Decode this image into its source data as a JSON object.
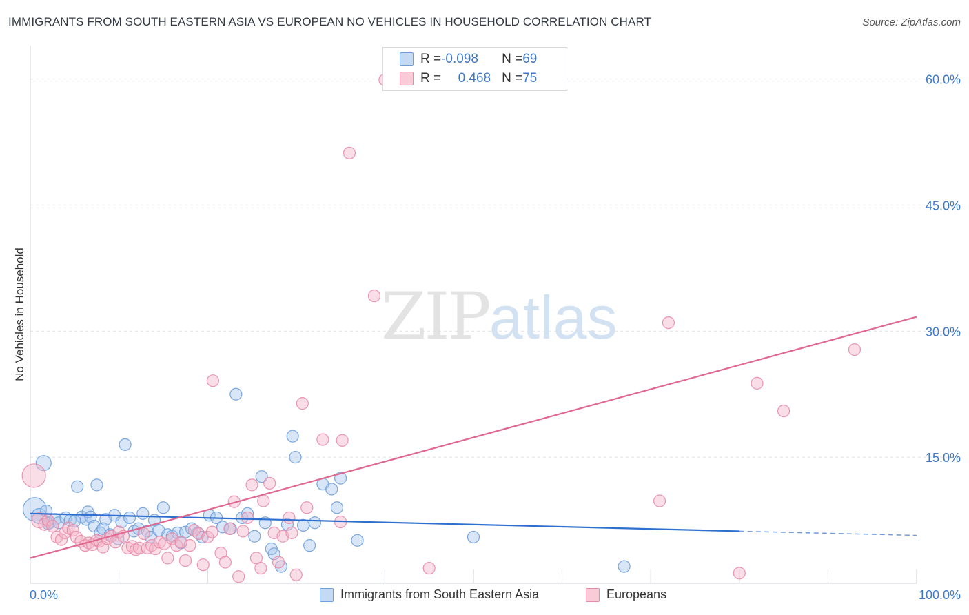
{
  "title": "IMMIGRANTS FROM SOUTH EASTERN ASIA VS EUROPEAN NO VEHICLES IN HOUSEHOLD CORRELATION CHART",
  "source": "Source: ZipAtlas.com",
  "watermark": {
    "zip": "ZIP",
    "atlas": "atlas"
  },
  "legend": {
    "rows": [
      {
        "r_label": "R = ",
        "r_value": "-0.098",
        "n_label": "N = ",
        "n_value": "69"
      },
      {
        "r_label": "R = ",
        "r_value": "0.468",
        "n_label": "N = ",
        "n_value": "75"
      }
    ]
  },
  "colors": {
    "blue_fill": "#a9c8ee",
    "blue_stroke": "#6d9fdc",
    "blue_line": "#2e6fcf",
    "pink_fill": "#f4b6c9",
    "pink_stroke": "#e98aa6",
    "pink_line": "#e0678f",
    "tick_label": "#3d79c8",
    "grid": "#dde0e5"
  },
  "chart_data": {
    "type": "scatter",
    "xlabel": "",
    "ylabel": "No Vehicles in Household",
    "xlim": [
      0,
      100
    ],
    "ylim": [
      0,
      63
    ],
    "x_tick_labels": [
      "0.0%",
      "100.0%"
    ],
    "y_ticks": [
      15,
      30,
      45,
      60
    ],
    "y_tick_labels": [
      "15.0%",
      "30.0%",
      "45.0%",
      "60.0%"
    ],
    "grid": true,
    "legend_position": "top-center",
    "series": [
      {
        "name": "Immigrants from South Eastern Asia",
        "color": "blue",
        "r": -0.098,
        "n": 69,
        "trend": {
          "x0": 0,
          "y0": 8.3,
          "x1": 80,
          "y1": 6.2,
          "dashed_to_x": 100,
          "dashed_to_y": 5.7
        },
        "points": [
          [
            0.5,
            8.8,
            3
          ],
          [
            1.0,
            8.0,
            2
          ],
          [
            1.5,
            14.3,
            2
          ],
          [
            1.8,
            8.6,
            1
          ],
          [
            2.2,
            7.2,
            1
          ],
          [
            2.8,
            7.6,
            1
          ],
          [
            3.2,
            7.2,
            1
          ],
          [
            4.0,
            7.8,
            1
          ],
          [
            4.5,
            7.5,
            1
          ],
          [
            5.3,
            11.5,
            1
          ],
          [
            5.8,
            7.9,
            1
          ],
          [
            6.3,
            7.6,
            1
          ],
          [
            6.5,
            8.5,
            1
          ],
          [
            6.8,
            7.9,
            1
          ],
          [
            7.2,
            6.8,
            1
          ],
          [
            7.5,
            11.7,
            1
          ],
          [
            7.9,
            6.0,
            1
          ],
          [
            8.2,
            6.5,
            1
          ],
          [
            8.5,
            7.6,
            1
          ],
          [
            9.0,
            5.8,
            1
          ],
          [
            9.5,
            8.1,
            1
          ],
          [
            9.9,
            5.3,
            1
          ],
          [
            10.3,
            7.3,
            1
          ],
          [
            10.7,
            16.5,
            1
          ],
          [
            11.2,
            7.8,
            1
          ],
          [
            11.7,
            6.2,
            1
          ],
          [
            12.2,
            6.5,
            1
          ],
          [
            12.7,
            8.3,
            1
          ],
          [
            13.2,
            6.2,
            1
          ],
          [
            13.6,
            5.5,
            1
          ],
          [
            14.0,
            7.5,
            1
          ],
          [
            14.5,
            6.3,
            1
          ],
          [
            15.0,
            9.0,
            1
          ],
          [
            15.5,
            5.8,
            1
          ],
          [
            16.0,
            5.6,
            1
          ],
          [
            16.6,
            6.0,
            1
          ],
          [
            17.0,
            4.8,
            1
          ],
          [
            17.5,
            6.1,
            1
          ],
          [
            18.2,
            6.5,
            1
          ],
          [
            18.9,
            6.0,
            1
          ],
          [
            19.4,
            5.5,
            1
          ],
          [
            20.2,
            8.1,
            1
          ],
          [
            21.0,
            7.8,
            1
          ],
          [
            21.7,
            6.7,
            1
          ],
          [
            22.6,
            6.5,
            1
          ],
          [
            23.2,
            22.5,
            1
          ],
          [
            23.9,
            7.8,
            1
          ],
          [
            24.5,
            8.3,
            1
          ],
          [
            25.3,
            5.6,
            1
          ],
          [
            26.1,
            12.7,
            1
          ],
          [
            26.5,
            7.2,
            1
          ],
          [
            27.2,
            4.1,
            1
          ],
          [
            27.5,
            3.5,
            1
          ],
          [
            28.3,
            2.0,
            1
          ],
          [
            29.0,
            7.0,
            1
          ],
          [
            29.6,
            17.5,
            1
          ],
          [
            29.9,
            15.0,
            1
          ],
          [
            30.8,
            6.9,
            1
          ],
          [
            31.5,
            4.5,
            1
          ],
          [
            32.1,
            7.2,
            1
          ],
          [
            33.0,
            11.8,
            1
          ],
          [
            34.0,
            11.2,
            1
          ],
          [
            34.6,
            9.0,
            1
          ],
          [
            35.0,
            12.5,
            1
          ],
          [
            36.9,
            5.1,
            1
          ],
          [
            50.0,
            5.5,
            1
          ],
          [
            67.0,
            2.0,
            1
          ],
          [
            2.0,
            7.1,
            1
          ],
          [
            5.0,
            7.4,
            1
          ]
        ]
      },
      {
        "name": "Europeans",
        "color": "pink",
        "r": 0.468,
        "n": 75,
        "trend": {
          "x0": 0,
          "y0": 3.0,
          "x1": 100,
          "y1": 31.7
        },
        "points": [
          [
            0.4,
            12.8,
            3
          ],
          [
            1.0,
            7.5,
            2
          ],
          [
            1.6,
            7.0,
            1
          ],
          [
            2.0,
            7.5,
            1
          ],
          [
            2.5,
            6.8,
            1
          ],
          [
            3.0,
            5.5,
            1
          ],
          [
            3.5,
            5.2,
            1
          ],
          [
            3.9,
            6.0,
            1
          ],
          [
            4.3,
            6.6,
            1
          ],
          [
            4.8,
            6.3,
            1
          ],
          [
            5.2,
            5.5,
            1
          ],
          [
            5.7,
            5.0,
            1
          ],
          [
            6.2,
            4.5,
            1
          ],
          [
            6.6,
            4.8,
            1
          ],
          [
            7.0,
            4.6,
            1
          ],
          [
            7.5,
            5.1,
            1
          ],
          [
            7.8,
            5.0,
            1
          ],
          [
            8.2,
            4.3,
            1
          ],
          [
            8.7,
            5.3,
            1
          ],
          [
            9.1,
            5.6,
            1
          ],
          [
            9.6,
            4.9,
            1
          ],
          [
            10.0,
            6.1,
            1
          ],
          [
            10.5,
            5.6,
            1
          ],
          [
            11.0,
            4.2,
            1
          ],
          [
            11.5,
            4.4,
            1
          ],
          [
            11.9,
            4.0,
            1
          ],
          [
            12.3,
            4.2,
            1
          ],
          [
            12.8,
            5.9,
            1
          ],
          [
            13.2,
            4.2,
            1
          ],
          [
            13.7,
            4.5,
            1
          ],
          [
            14.1,
            4.1,
            1
          ],
          [
            14.6,
            4.9,
            1
          ],
          [
            15.1,
            4.7,
            1
          ],
          [
            15.5,
            3.0,
            1
          ],
          [
            16.0,
            5.3,
            1
          ],
          [
            16.5,
            4.5,
            1
          ],
          [
            17.0,
            4.9,
            1
          ],
          [
            17.5,
            2.7,
            1
          ],
          [
            18.0,
            4.5,
            1
          ],
          [
            18.5,
            6.3,
            1
          ],
          [
            19.0,
            5.9,
            1
          ],
          [
            19.5,
            2.2,
            1
          ],
          [
            20.0,
            5.5,
            1
          ],
          [
            20.5,
            6.1,
            1
          ],
          [
            20.6,
            24.1,
            1
          ],
          [
            21.5,
            3.6,
            1
          ],
          [
            22.0,
            2.5,
            1
          ],
          [
            22.5,
            6.5,
            1
          ],
          [
            23.0,
            9.7,
            1
          ],
          [
            23.5,
            0.8,
            1
          ],
          [
            24.0,
            6.2,
            1
          ],
          [
            24.5,
            7.8,
            1
          ],
          [
            25.0,
            11.7,
            1
          ],
          [
            25.5,
            3.0,
            1
          ],
          [
            26.0,
            1.8,
            1
          ],
          [
            26.3,
            9.8,
            1
          ],
          [
            27.0,
            11.9,
            1
          ],
          [
            27.5,
            6.0,
            1
          ],
          [
            28.0,
            2.5,
            1
          ],
          [
            28.5,
            5.6,
            1
          ],
          [
            29.2,
            7.8,
            1
          ],
          [
            29.5,
            6.0,
            1
          ],
          [
            30.0,
            1.0,
            1
          ],
          [
            30.7,
            21.4,
            1
          ],
          [
            31.2,
            9.0,
            1
          ],
          [
            33.0,
            17.1,
            1
          ],
          [
            35.0,
            7.3,
            1
          ],
          [
            35.2,
            17.0,
            1
          ],
          [
            36.0,
            51.2,
            1
          ],
          [
            38.8,
            34.2,
            1
          ],
          [
            40.0,
            59.9,
            1
          ],
          [
            45.0,
            1.8,
            1
          ],
          [
            71.0,
            9.8,
            1
          ],
          [
            72.0,
            31.0,
            1
          ],
          [
            80.0,
            1.2,
            1
          ],
          [
            82.0,
            23.8,
            1
          ],
          [
            85.0,
            20.5,
            1
          ],
          [
            93.0,
            27.8,
            1
          ]
        ]
      }
    ]
  }
}
